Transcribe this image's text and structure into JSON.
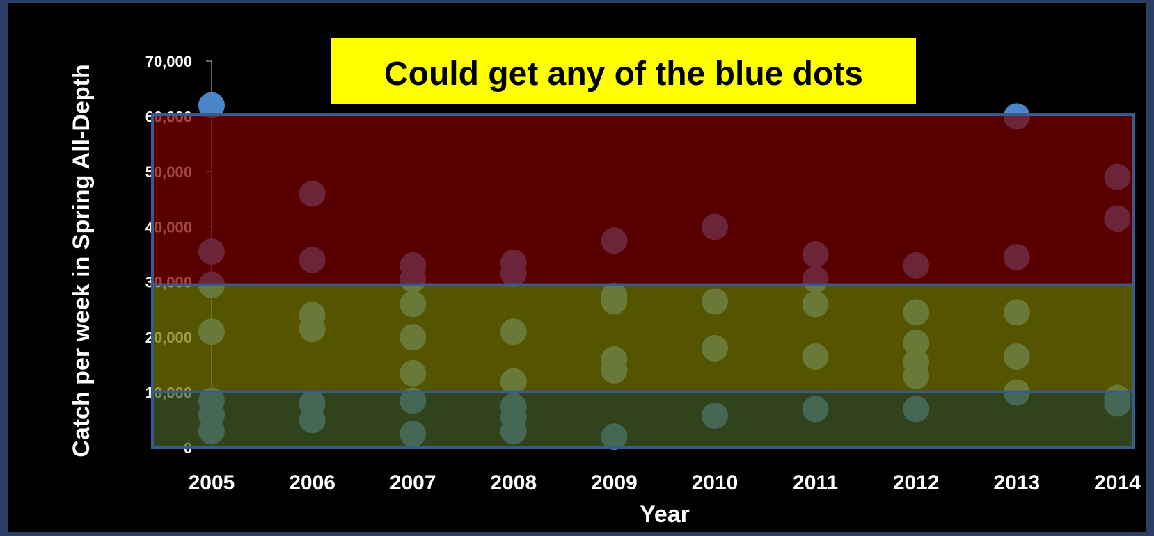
{
  "chart_data": {
    "type": "scatter",
    "title": "",
    "xlabel": "Year",
    "ylabel": "Catch per week in Spring All-Depth",
    "xlim": [
      2005,
      2014
    ],
    "ylim": [
      0,
      70000
    ],
    "x_ticks": [
      "2005",
      "2006",
      "2007",
      "2008",
      "2009",
      "2010",
      "2011",
      "2012",
      "2013",
      "2014"
    ],
    "y_ticks": [
      "0",
      "10,000",
      "20,000",
      "30,000",
      "40,000",
      "50,000",
      "60,000",
      "70,000"
    ],
    "grid": false,
    "legend": "none",
    "point_color": "#4a86c8",
    "bands": [
      {
        "name": "red",
        "from": 29500,
        "to": 60300,
        "color": "#7a0000"
      },
      {
        "name": "yellow",
        "from": 10100,
        "to": 29500,
        "color": "#767400"
      },
      {
        "name": "green",
        "from": 0,
        "to": 10100,
        "color": "#445d28"
      }
    ],
    "points": [
      {
        "x": 2005,
        "y": 62000
      },
      {
        "x": 2005,
        "y": 35500
      },
      {
        "x": 2005,
        "y": 29500
      },
      {
        "x": 2005,
        "y": 21000
      },
      {
        "x": 2005,
        "y": 8500
      },
      {
        "x": 2005,
        "y": 6000
      },
      {
        "x": 2005,
        "y": 3000
      },
      {
        "x": 2006,
        "y": 46000
      },
      {
        "x": 2006,
        "y": 34000
      },
      {
        "x": 2006,
        "y": 24000
      },
      {
        "x": 2006,
        "y": 21500
      },
      {
        "x": 2006,
        "y": 8000
      },
      {
        "x": 2006,
        "y": 5000
      },
      {
        "x": 2007,
        "y": 33000
      },
      {
        "x": 2007,
        "y": 30500
      },
      {
        "x": 2007,
        "y": 26000
      },
      {
        "x": 2007,
        "y": 20000
      },
      {
        "x": 2007,
        "y": 13500
      },
      {
        "x": 2007,
        "y": 8500
      },
      {
        "x": 2007,
        "y": 2500
      },
      {
        "x": 2008,
        "y": 33500
      },
      {
        "x": 2008,
        "y": 31500
      },
      {
        "x": 2008,
        "y": 21000
      },
      {
        "x": 2008,
        "y": 12000
      },
      {
        "x": 2008,
        "y": 7500
      },
      {
        "x": 2008,
        "y": 5500
      },
      {
        "x": 2008,
        "y": 3000
      },
      {
        "x": 2009,
        "y": 37500
      },
      {
        "x": 2009,
        "y": 27500
      },
      {
        "x": 2009,
        "y": 26500
      },
      {
        "x": 2009,
        "y": 16000
      },
      {
        "x": 2009,
        "y": 14000
      },
      {
        "x": 2009,
        "y": 2000
      },
      {
        "x": 2010,
        "y": 40000
      },
      {
        "x": 2010,
        "y": 26500
      },
      {
        "x": 2010,
        "y": 18000
      },
      {
        "x": 2010,
        "y": 5800
      },
      {
        "x": 2011,
        "y": 35000
      },
      {
        "x": 2011,
        "y": 30500
      },
      {
        "x": 2011,
        "y": 26000
      },
      {
        "x": 2011,
        "y": 16500
      },
      {
        "x": 2011,
        "y": 7000
      },
      {
        "x": 2012,
        "y": 33000
      },
      {
        "x": 2012,
        "y": 24500
      },
      {
        "x": 2012,
        "y": 19000
      },
      {
        "x": 2012,
        "y": 15500
      },
      {
        "x": 2012,
        "y": 13000
      },
      {
        "x": 2012,
        "y": 7000
      },
      {
        "x": 2013,
        "y": 60000
      },
      {
        "x": 2013,
        "y": 34500
      },
      {
        "x": 2013,
        "y": 24500
      },
      {
        "x": 2013,
        "y": 16500
      },
      {
        "x": 2013,
        "y": 10000
      },
      {
        "x": 2014,
        "y": 49000
      },
      {
        "x": 2014,
        "y": 41500
      },
      {
        "x": 2014,
        "y": 9000
      },
      {
        "x": 2014,
        "y": 8000
      }
    ]
  },
  "callout": {
    "text": "Could get any of the blue dots",
    "background": "#ffff00"
  }
}
